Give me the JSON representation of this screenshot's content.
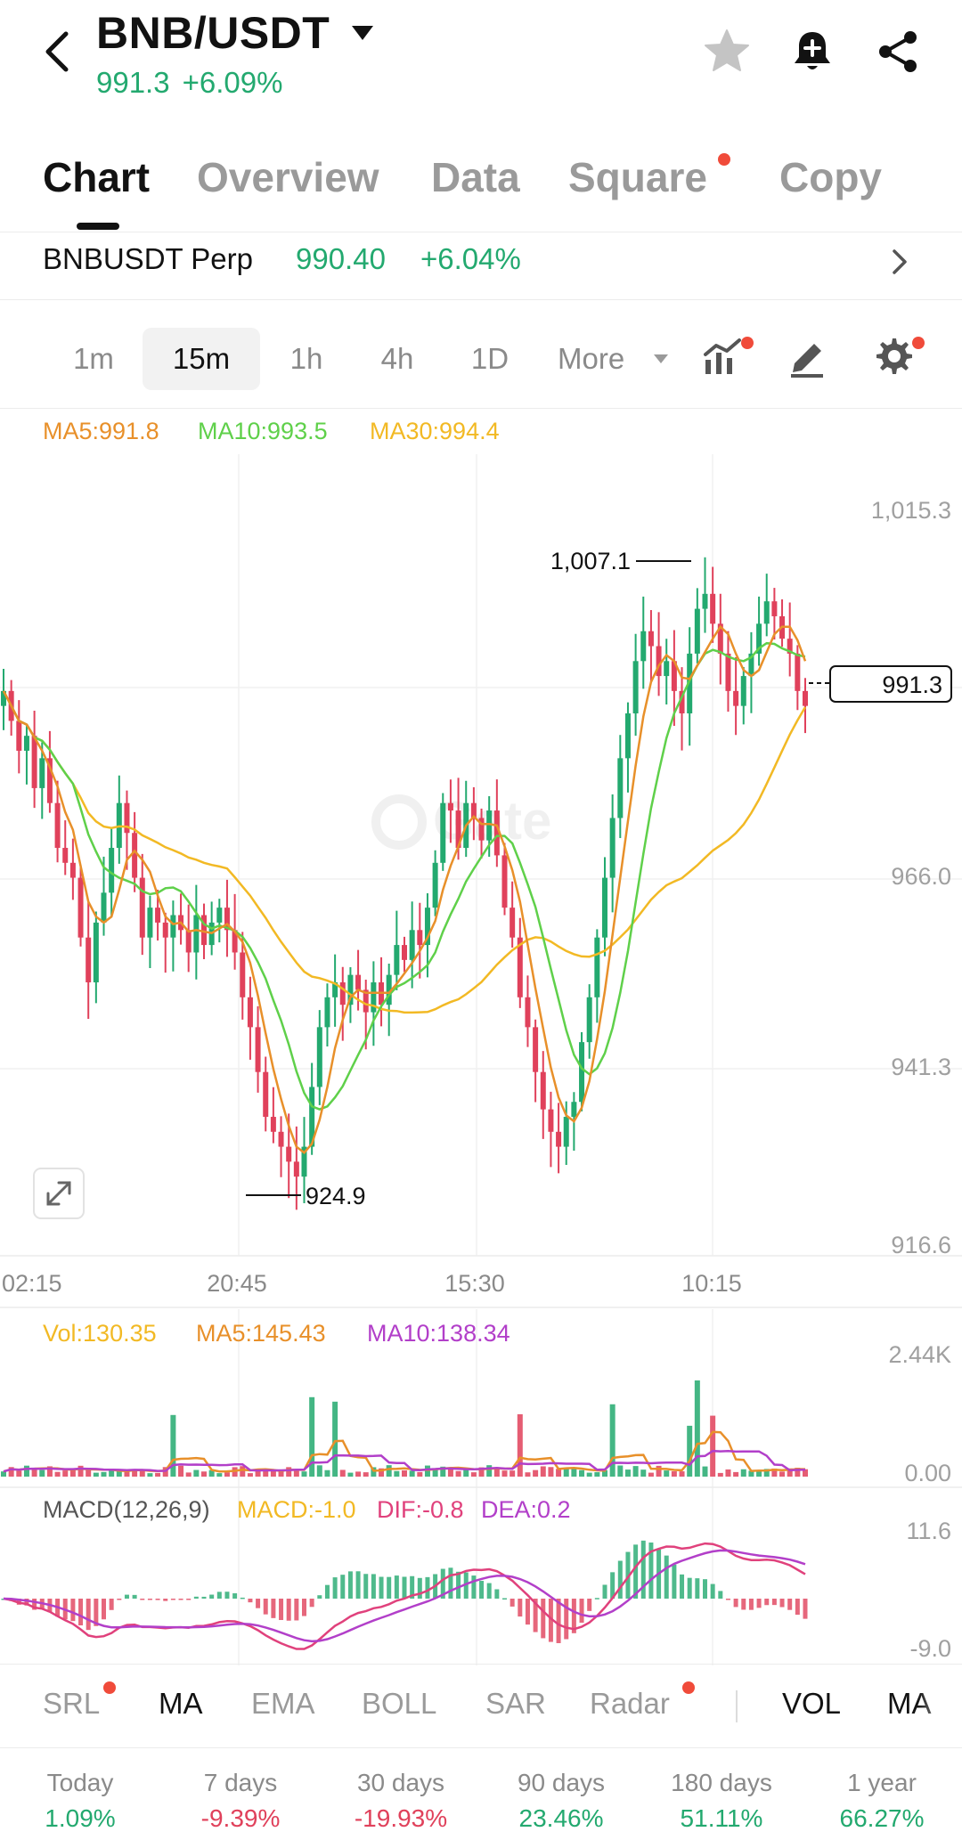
{
  "header": {
    "pair": "BNB/USDT",
    "price": "991.3",
    "change": "+6.09%"
  },
  "tabs": [
    {
      "label": "Chart",
      "active": true
    },
    {
      "label": "Overview",
      "active": false
    },
    {
      "label": "Data",
      "active": false
    },
    {
      "label": "Square",
      "active": false,
      "dot": true
    },
    {
      "label": "Copy",
      "active": false
    }
  ],
  "perp": {
    "name": "BNBUSDT Perp",
    "price": "990.40",
    "change": "+6.04%"
  },
  "intervals": {
    "items": [
      "1m",
      "15m",
      "1h",
      "4h",
      "1D"
    ],
    "active": "15m",
    "more": "More"
  },
  "chart_data": {
    "type": "candlestick",
    "ma_legend": {
      "ma5": "MA5:991.8",
      "ma10": "MA10:993.5",
      "ma30": "MA30:994.4"
    },
    "y_ticks": [
      "1,015.3",
      "966.0",
      "941.3",
      "916.6"
    ],
    "x_ticks": [
      "02:15",
      "20:45",
      "15:30",
      "10:15"
    ],
    "high_label": "1,007.1",
    "low_label": "924.9",
    "last_price": "991.3",
    "ylim": [
      916.6,
      1015.3
    ],
    "close": [
      991,
      987,
      983,
      985,
      978,
      982,
      976,
      970,
      968,
      966,
      958,
      952,
      960,
      964,
      970,
      976,
      972,
      966,
      958,
      962,
      960,
      958,
      961,
      959,
      956,
      961,
      957,
      960,
      962,
      959,
      956,
      950,
      946,
      940,
      934,
      932,
      930,
      928,
      926,
      930,
      938,
      946,
      950,
      952,
      949,
      953,
      951,
      948,
      952,
      949,
      953,
      957,
      955,
      959,
      957,
      962,
      968,
      976,
      975,
      970,
      976,
      974,
      971,
      975,
      969,
      962,
      958,
      950,
      946,
      940,
      935,
      932,
      930,
      934,
      936,
      944,
      950,
      958,
      966,
      974,
      982,
      988,
      995,
      999,
      997,
      993,
      995,
      991,
      988,
      996,
      1002,
      1004,
      1000,
      996,
      991,
      989,
      993,
      996,
      1000,
      1003,
      1001,
      998,
      996,
      991,
      989
    ],
    "colors": {
      "up": "#23a96f",
      "down": "#e0415b",
      "ma5": "#e8902a",
      "ma10": "#5fd04a",
      "ma30": "#f2b924"
    }
  },
  "volume": {
    "vol": "Vol:130.35",
    "ma5": "MA5:145.43",
    "ma10": "MA10:138.34",
    "ticks": [
      "2.44K",
      "0.00"
    ]
  },
  "macd": {
    "label": "MACD(12,26,9)",
    "macd": "MACD:-1.0",
    "dif": "DIF:-0.8",
    "dea": "DEA:0.2",
    "ticks": [
      "11.6",
      "-9.0"
    ]
  },
  "indicators": [
    "SRL",
    "MA",
    "EMA",
    "BOLL",
    "SAR",
    "Radar",
    "VOL",
    "MA"
  ],
  "returns": [
    {
      "label": "Today",
      "value": "1.09%",
      "sign": "pos"
    },
    {
      "label": "7 days",
      "value": "-9.39%",
      "sign": "neg"
    },
    {
      "label": "30 days",
      "value": "-19.93%",
      "sign": "neg"
    },
    {
      "label": "90 days",
      "value": "23.46%",
      "sign": "pos"
    },
    {
      "label": "180 days",
      "value": "51.11%",
      "sign": "pos"
    },
    {
      "label": "1 year",
      "value": "66.27%",
      "sign": "pos"
    }
  ]
}
